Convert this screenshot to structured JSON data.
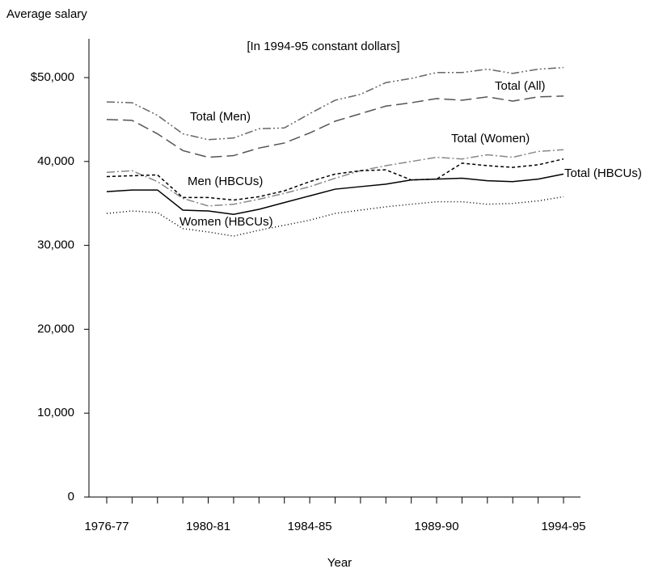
{
  "chart_data": {
    "type": "line",
    "subtitle": "[In 1994-95 constant dollars]",
    "y_label": "Average salary",
    "x_label": "Year",
    "categories": [
      "1976-77",
      null,
      null,
      null,
      "1980-81",
      null,
      null,
      null,
      "1984-85",
      null,
      null,
      null,
      null,
      "1989-90",
      null,
      null,
      null,
      null,
      "1994-95"
    ],
    "ylim": [
      0,
      54500
    ],
    "yticks": [
      0,
      {
        "value": 10000,
        "label": "10,000"
      },
      {
        "value": 20000,
        "label": "20,000"
      },
      {
        "value": 30000,
        "label": "30,000"
      },
      {
        "value": 40000,
        "label": "40,000"
      },
      {
        "value": 50000,
        "label": "$50,000"
      }
    ],
    "series": [
      {
        "name": "Total (All)",
        "color": "#555555",
        "dash": "14,6",
        "values": [
          45000,
          44900,
          43300,
          41300,
          40500,
          40700,
          41600,
          42200,
          43400,
          44800,
          45700,
          46600,
          47000,
          47500,
          47300,
          47700,
          47200,
          47700,
          47800
        ]
      },
      {
        "name": "Total (Men)",
        "color": "#666666",
        "dash": "10,3,2,3,2,3",
        "values": [
          47100,
          47000,
          45500,
          43300,
          42600,
          42800,
          43900,
          44000,
          45700,
          47300,
          48000,
          49400,
          49900,
          50600,
          50600,
          51000,
          50500,
          51000,
          51200
        ]
      },
      {
        "name": "Total (Women)",
        "color": "#888888",
        "dash": "10,3,2,3",
        "values": [
          38700,
          38900,
          37600,
          35600,
          34700,
          34900,
          35500,
          36200,
          37000,
          38000,
          38900,
          39500,
          40000,
          40500,
          40300,
          40800,
          40500,
          41200,
          41400
        ]
      },
      {
        "name": "Men (HBCUs)",
        "color": "#000000",
        "dash": "4,3",
        "values": [
          38200,
          38300,
          38400,
          35700,
          35700,
          35400,
          35800,
          36500,
          37600,
          38500,
          38900,
          39000,
          37800,
          37900,
          39800,
          39500,
          39300,
          39600,
          40300
        ]
      },
      {
        "name": "Total (HBCUs)",
        "color": "#000000",
        "dash": "none",
        "values": [
          36400,
          36600,
          36600,
          34200,
          34100,
          33700,
          34300,
          35100,
          35900,
          36700,
          37000,
          37300,
          37800,
          37900,
          38000,
          37700,
          37600,
          37900,
          38500
        ]
      },
      {
        "name": "Women (HBCUs)",
        "color": "#000000",
        "dash": "1,3",
        "values": [
          33800,
          34100,
          33900,
          32000,
          31600,
          31100,
          31800,
          32400,
          33000,
          33800,
          34200,
          34600,
          34900,
          35200,
          35200,
          34900,
          35000,
          35300,
          35800
        ]
      }
    ]
  }
}
